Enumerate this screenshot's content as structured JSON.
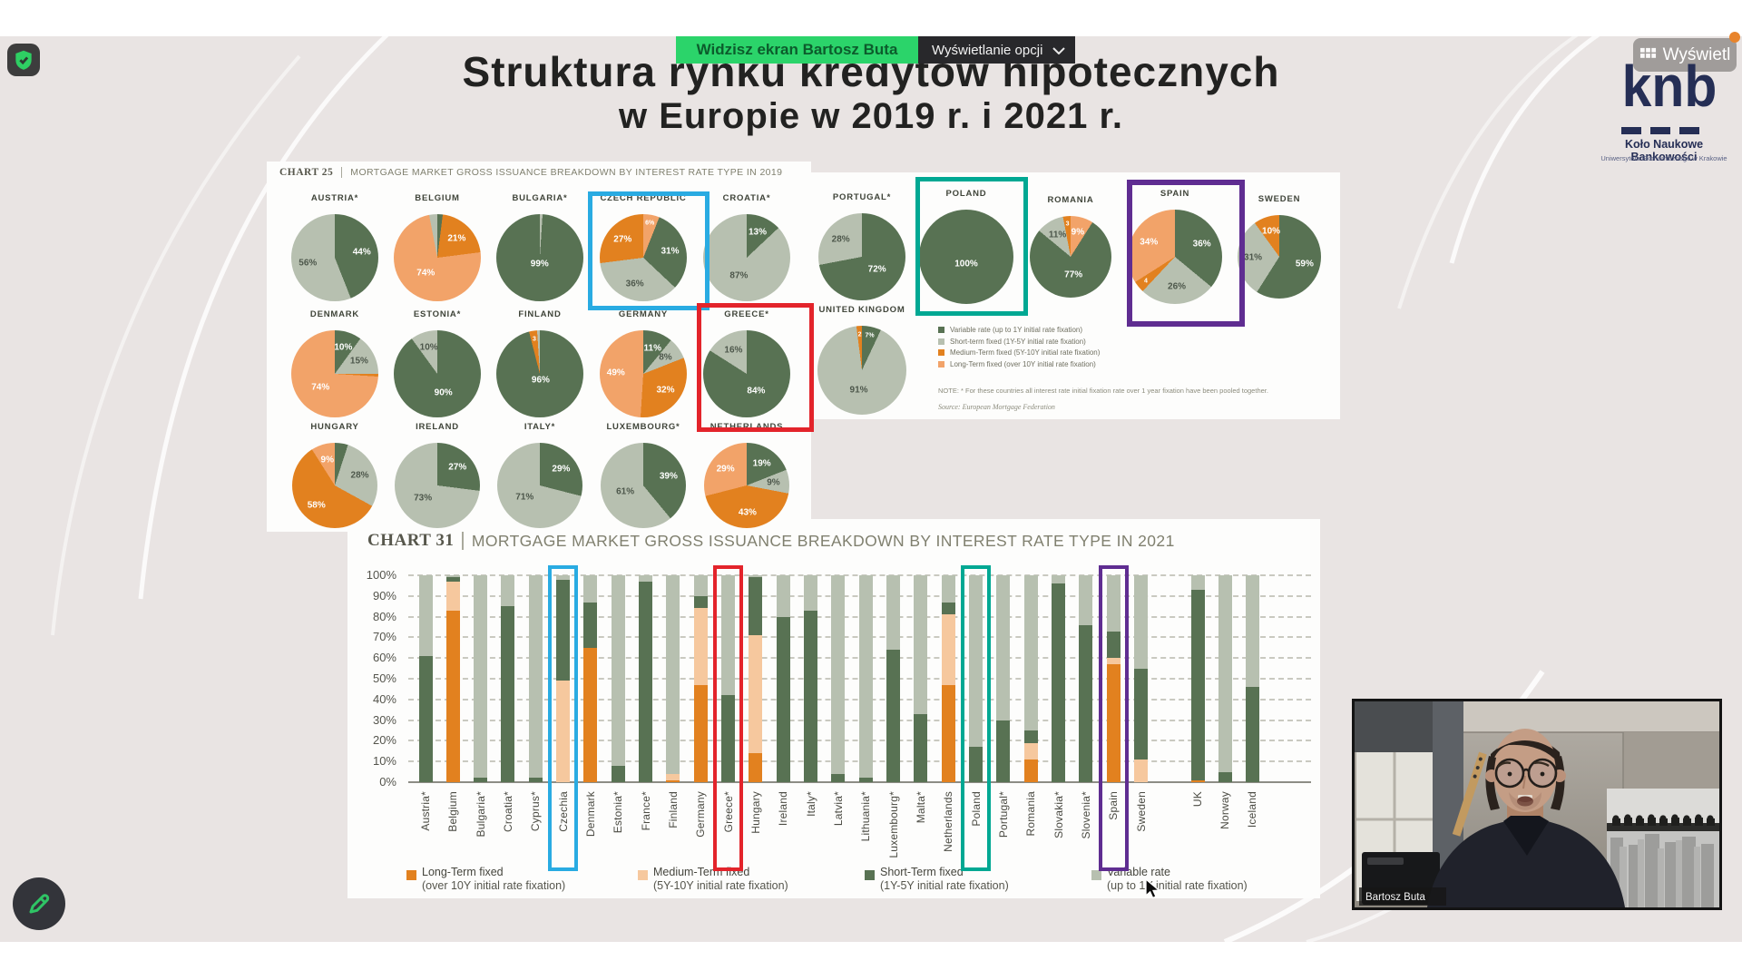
{
  "colors": {
    "dark_green": "#587253",
    "sage": "#b7c0b0",
    "dark_orange": "#e2811f",
    "light_orange": "#f2a369",
    "tan": "#f6c89e",
    "banner_green": "#2bd46a",
    "box_blue": "#29abe2",
    "box_red": "#e3242b",
    "box_teal": "#00a893",
    "box_purple": "#5f2d91",
    "logo_navy": "#252e55"
  },
  "top_bar": {
    "share_banner": "Widzisz ekran Bartosz Buta",
    "options_button": "Wyświetlanie opcji",
    "view_button": "Wyświetl"
  },
  "title": {
    "line1": "Struktura rynku kredytów hipotecznych",
    "line2": "w Europie w 2019 r. i 2021 r."
  },
  "logo": {
    "acronym": "knb",
    "name": "Koło Naukowe Bankowości",
    "subtitle": "Uniwersytetu Ekonomicznego w Krakowie"
  },
  "webcam": {
    "participant_name": "Bartosz Buta"
  },
  "chart_data": [
    {
      "type": "pie",
      "chart_label": "CHART 25",
      "title": "MORTGAGE MARKET GROSS ISSUANCE BREAKDOWN BY INTEREST RATE TYPE IN 2019",
      "color_map": {
        "variable": "dark_green",
        "short": "sage",
        "medium": "dark_orange",
        "long": "light_orange"
      },
      "legend": [
        {
          "label": "Variable rate (up to 1Y initial rate fixation)",
          "color": "dark_green"
        },
        {
          "label": "Short-term fixed (1Y-5Y initial rate fixation)",
          "color": "sage"
        },
        {
          "label": "Medium-Term fixed (5Y-10Y initial rate fixation)",
          "color": "dark_orange"
        },
        {
          "label": "Long-Term fixed (over 10Y initial rate fixation)",
          "color": "light_orange"
        }
      ],
      "note": "NOTE: * For these countries all interest rate initial fixation rate over 1 year fixation have been pooled together.",
      "source": "Source: European Mortgage Federation",
      "left_rows": [
        [
          {
            "name": "AUSTRIA*",
            "segments": [
              [
                "variable",
                44,
                "44%"
              ],
              [
                "short",
                56,
                "56%"
              ]
            ]
          },
          {
            "name": "BELGIUM",
            "segments": [
              [
                "variable",
                2,
                ""
              ],
              [
                "medium",
                21,
                "21%"
              ],
              [
                "long",
                74,
                "74%"
              ],
              [
                "short",
                3,
                ""
              ]
            ]
          },
          {
            "name": "BULGARIA*",
            "segments": [
              [
                "short",
                1,
                ""
              ],
              [
                "variable",
                99,
                "99%"
              ]
            ]
          },
          {
            "name": "CZECH REPUBLIC",
            "highlight": "box_blue",
            "segments": [
              [
                "long",
                6,
                "6%"
              ],
              [
                "variable",
                31,
                "31%"
              ],
              [
                "short",
                36,
                "36%"
              ],
              [
                "medium",
                27,
                "27%"
              ]
            ]
          },
          {
            "name": "CROATIA*",
            "segments": [
              [
                "variable",
                13,
                "13%"
              ],
              [
                "short",
                87,
                "87%"
              ]
            ]
          }
        ],
        [
          {
            "name": "DENMARK",
            "segments": [
              [
                "variable",
                10,
                "10%"
              ],
              [
                "short",
                15,
                "15%"
              ],
              [
                "medium",
                1,
                ""
              ],
              [
                "long",
                74,
                "74%"
              ]
            ]
          },
          {
            "name": "ESTONIA*",
            "segments": [
              [
                "variable",
                90,
                "90%"
              ],
              [
                "short",
                10,
                "10%"
              ]
            ]
          },
          {
            "name": "FINLAND",
            "segments": [
              [
                "variable",
                96,
                "96%"
              ],
              [
                "medium",
                3,
                "3"
              ],
              [
                "short",
                1,
                ""
              ]
            ]
          },
          {
            "name": "GERMANY",
            "segments": [
              [
                "variable",
                11,
                "11%"
              ],
              [
                "short",
                8,
                "8%"
              ],
              [
                "medium",
                32,
                "32%"
              ],
              [
                "long",
                49,
                "49%"
              ]
            ]
          },
          {
            "name": "GREECE*",
            "highlight": "box_red",
            "segments": [
              [
                "variable",
                84,
                "84%"
              ],
              [
                "short",
                16,
                "16%"
              ]
            ]
          }
        ],
        [
          {
            "name": "HUNGARY",
            "segments": [
              [
                "variable",
                5,
                ""
              ],
              [
                "short",
                28,
                "28%"
              ],
              [
                "medium",
                58,
                "58%"
              ],
              [
                "long",
                9,
                "9%"
              ]
            ]
          },
          {
            "name": "IRELAND",
            "segments": [
              [
                "variable",
                27,
                "27%"
              ],
              [
                "short",
                73,
                "73%"
              ]
            ]
          },
          {
            "name": "ITALY*",
            "segments": [
              [
                "variable",
                29,
                "29%"
              ],
              [
                "short",
                71,
                "71%"
              ]
            ]
          },
          {
            "name": "LUXEMBOURG*",
            "segments": [
              [
                "variable",
                39,
                "39%"
              ],
              [
                "short",
                61,
                "61%"
              ]
            ]
          },
          {
            "name": "NETHERLANDS",
            "segments": [
              [
                "variable",
                19,
                "19%"
              ],
              [
                "short",
                9,
                "9%"
              ],
              [
                "medium",
                43,
                "43%"
              ],
              [
                "long",
                29,
                "29%"
              ]
            ]
          }
        ]
      ],
      "right_row": [
        {
          "name": "PORTUGAL*",
          "segments": [
            [
              "variable",
              72,
              "72%"
            ],
            [
              "short",
              28,
              "28%"
            ]
          ]
        },
        {
          "name": "POLAND",
          "highlight": "box_teal",
          "segments": [
            [
              "variable",
              100,
              "100%"
            ]
          ]
        },
        {
          "name": "ROMANIA",
          "segments": [
            [
              "long",
              9,
              "9%"
            ],
            [
              "variable",
              77,
              "77%"
            ],
            [
              "short",
              11,
              "11%"
            ],
            [
              "medium",
              3,
              "3"
            ]
          ]
        },
        {
          "name": "SPAIN",
          "highlight": "box_purple",
          "segments": [
            [
              "variable",
              36,
              "36%"
            ],
            [
              "short",
              26,
              "26%"
            ],
            [
              "medium",
              4,
              "4"
            ],
            [
              "long",
              34,
              "34%"
            ]
          ]
        },
        {
          "name": "SWEDEN",
          "segments": [
            [
              "variable",
              59,
              "59%"
            ],
            [
              "short",
              31,
              "31%"
            ],
            [
              "medium",
              10,
              "10%"
            ]
          ]
        }
      ],
      "right_row2": [
        {
          "name": "UNITED KINGDOM",
          "segments": [
            [
              "variable",
              7,
              "7%"
            ],
            [
              "short",
              91,
              "91%"
            ],
            [
              "medium",
              2,
              "2"
            ]
          ]
        }
      ]
    },
    {
      "type": "bar",
      "chart_label": "CHART 31",
      "title": "MORTGAGE MARKET GROSS ISSUANCE BREAKDOWN BY INTEREST RATE TYPE IN 2021",
      "color_map": {
        "long": "dark_orange",
        "medium": "tan",
        "short": "dark_green",
        "variable": "sage"
      },
      "ylabels": [
        "100%",
        "90%",
        "80%",
        "70%",
        "60%",
        "50%",
        "40%",
        "30%",
        "20%",
        "10%",
        "0%"
      ],
      "ylim": [
        0,
        100
      ],
      "legend": [
        {
          "label": "Long-Term fixed",
          "sub": "(over 10Y initial rate fixation)",
          "color": "dark_orange"
        },
        {
          "label": "Medium-Term fixed",
          "sub": "(5Y-10Y initial rate fixation)",
          "color": "tan"
        },
        {
          "label": "Short-Term fixed",
          "sub": "(1Y-5Y initial rate fixation)",
          "color": "dark_green"
        },
        {
          "label": "Variable rate",
          "sub": "(up to 1Y initial rate fixation)",
          "color": "sage"
        }
      ],
      "stack_order": [
        "long",
        "medium",
        "short",
        "variable"
      ],
      "bars": [
        {
          "name": "Austria*",
          "long": 0,
          "medium": 0,
          "short": 61,
          "variable": 39
        },
        {
          "name": "Belgium",
          "long": 83,
          "medium": 14,
          "short": 2,
          "variable": 1
        },
        {
          "name": "Bulgaria*",
          "long": 0,
          "medium": 0,
          "short": 2,
          "variable": 98
        },
        {
          "name": "Croatia*",
          "long": 0,
          "medium": 0,
          "short": 85,
          "variable": 15
        },
        {
          "name": "Cyprus*",
          "long": 0,
          "medium": 0,
          "short": 2,
          "variable": 98
        },
        {
          "name": "Czechia",
          "highlight": "box_blue",
          "long": 0,
          "medium": 49,
          "short": 49,
          "variable": 2
        },
        {
          "name": "Denmark",
          "long": 65,
          "medium": 0,
          "short": 22,
          "variable": 13
        },
        {
          "name": "Estonia*",
          "long": 0,
          "medium": 0,
          "short": 8,
          "variable": 92
        },
        {
          "name": "France*",
          "long": 0,
          "medium": 0,
          "short": 97,
          "variable": 3
        },
        {
          "name": "Finland",
          "long": 1,
          "medium": 3,
          "short": 0,
          "variable": 96
        },
        {
          "name": "Germany",
          "long": 47,
          "medium": 37,
          "short": 6,
          "variable": 10
        },
        {
          "name": "Greece*",
          "highlight": "box_red",
          "long": 0,
          "medium": 0,
          "short": 42,
          "variable": 58
        },
        {
          "name": "Hungary",
          "long": 14,
          "medium": 57,
          "short": 28,
          "variable": 1
        },
        {
          "name": "Ireland",
          "long": 0,
          "medium": 0,
          "short": 80,
          "variable": 20
        },
        {
          "name": "Italy*",
          "long": 0,
          "medium": 0,
          "short": 83,
          "variable": 17
        },
        {
          "name": "Latvia*",
          "long": 0,
          "medium": 0,
          "short": 4,
          "variable": 96
        },
        {
          "name": "Lithuania*",
          "long": 0,
          "medium": 0,
          "short": 2,
          "variable": 98
        },
        {
          "name": "Luxembourg*",
          "long": 0,
          "medium": 0,
          "short": 64,
          "variable": 36
        },
        {
          "name": "Malta*",
          "long": 0,
          "medium": 0,
          "short": 33,
          "variable": 67
        },
        {
          "name": "Netherlands",
          "long": 47,
          "medium": 34,
          "short": 6,
          "variable": 13
        },
        {
          "name": "Poland",
          "highlight": "box_teal",
          "long": 0,
          "medium": 0,
          "short": 17,
          "variable": 83
        },
        {
          "name": "Portugal*",
          "long": 0,
          "medium": 0,
          "short": 30,
          "variable": 70
        },
        {
          "name": "Romania",
          "long": 11,
          "medium": 8,
          "short": 6,
          "variable": 75
        },
        {
          "name": "Slovakia*",
          "long": 0,
          "medium": 0,
          "short": 96,
          "variable": 4
        },
        {
          "name": "Slovenia*",
          "long": 0,
          "medium": 0,
          "short": 76,
          "variable": 24
        },
        {
          "name": "Spain",
          "highlight": "box_purple",
          "long": 57,
          "medium": 3,
          "short": 13,
          "variable": 27
        },
        {
          "name": "Sweden",
          "long": 0,
          "medium": 11,
          "short": 44,
          "variable": 45
        },
        {
          "name": "UK",
          "group": "non-eu",
          "long": 1,
          "medium": 0,
          "short": 92,
          "variable": 7
        },
        {
          "name": "Norway",
          "group": "non-eu",
          "long": 0,
          "medium": 0,
          "short": 5,
          "variable": 95
        },
        {
          "name": "Iceland",
          "group": "non-eu",
          "long": 0,
          "medium": 0,
          "short": 46,
          "variable": 54
        }
      ]
    }
  ]
}
